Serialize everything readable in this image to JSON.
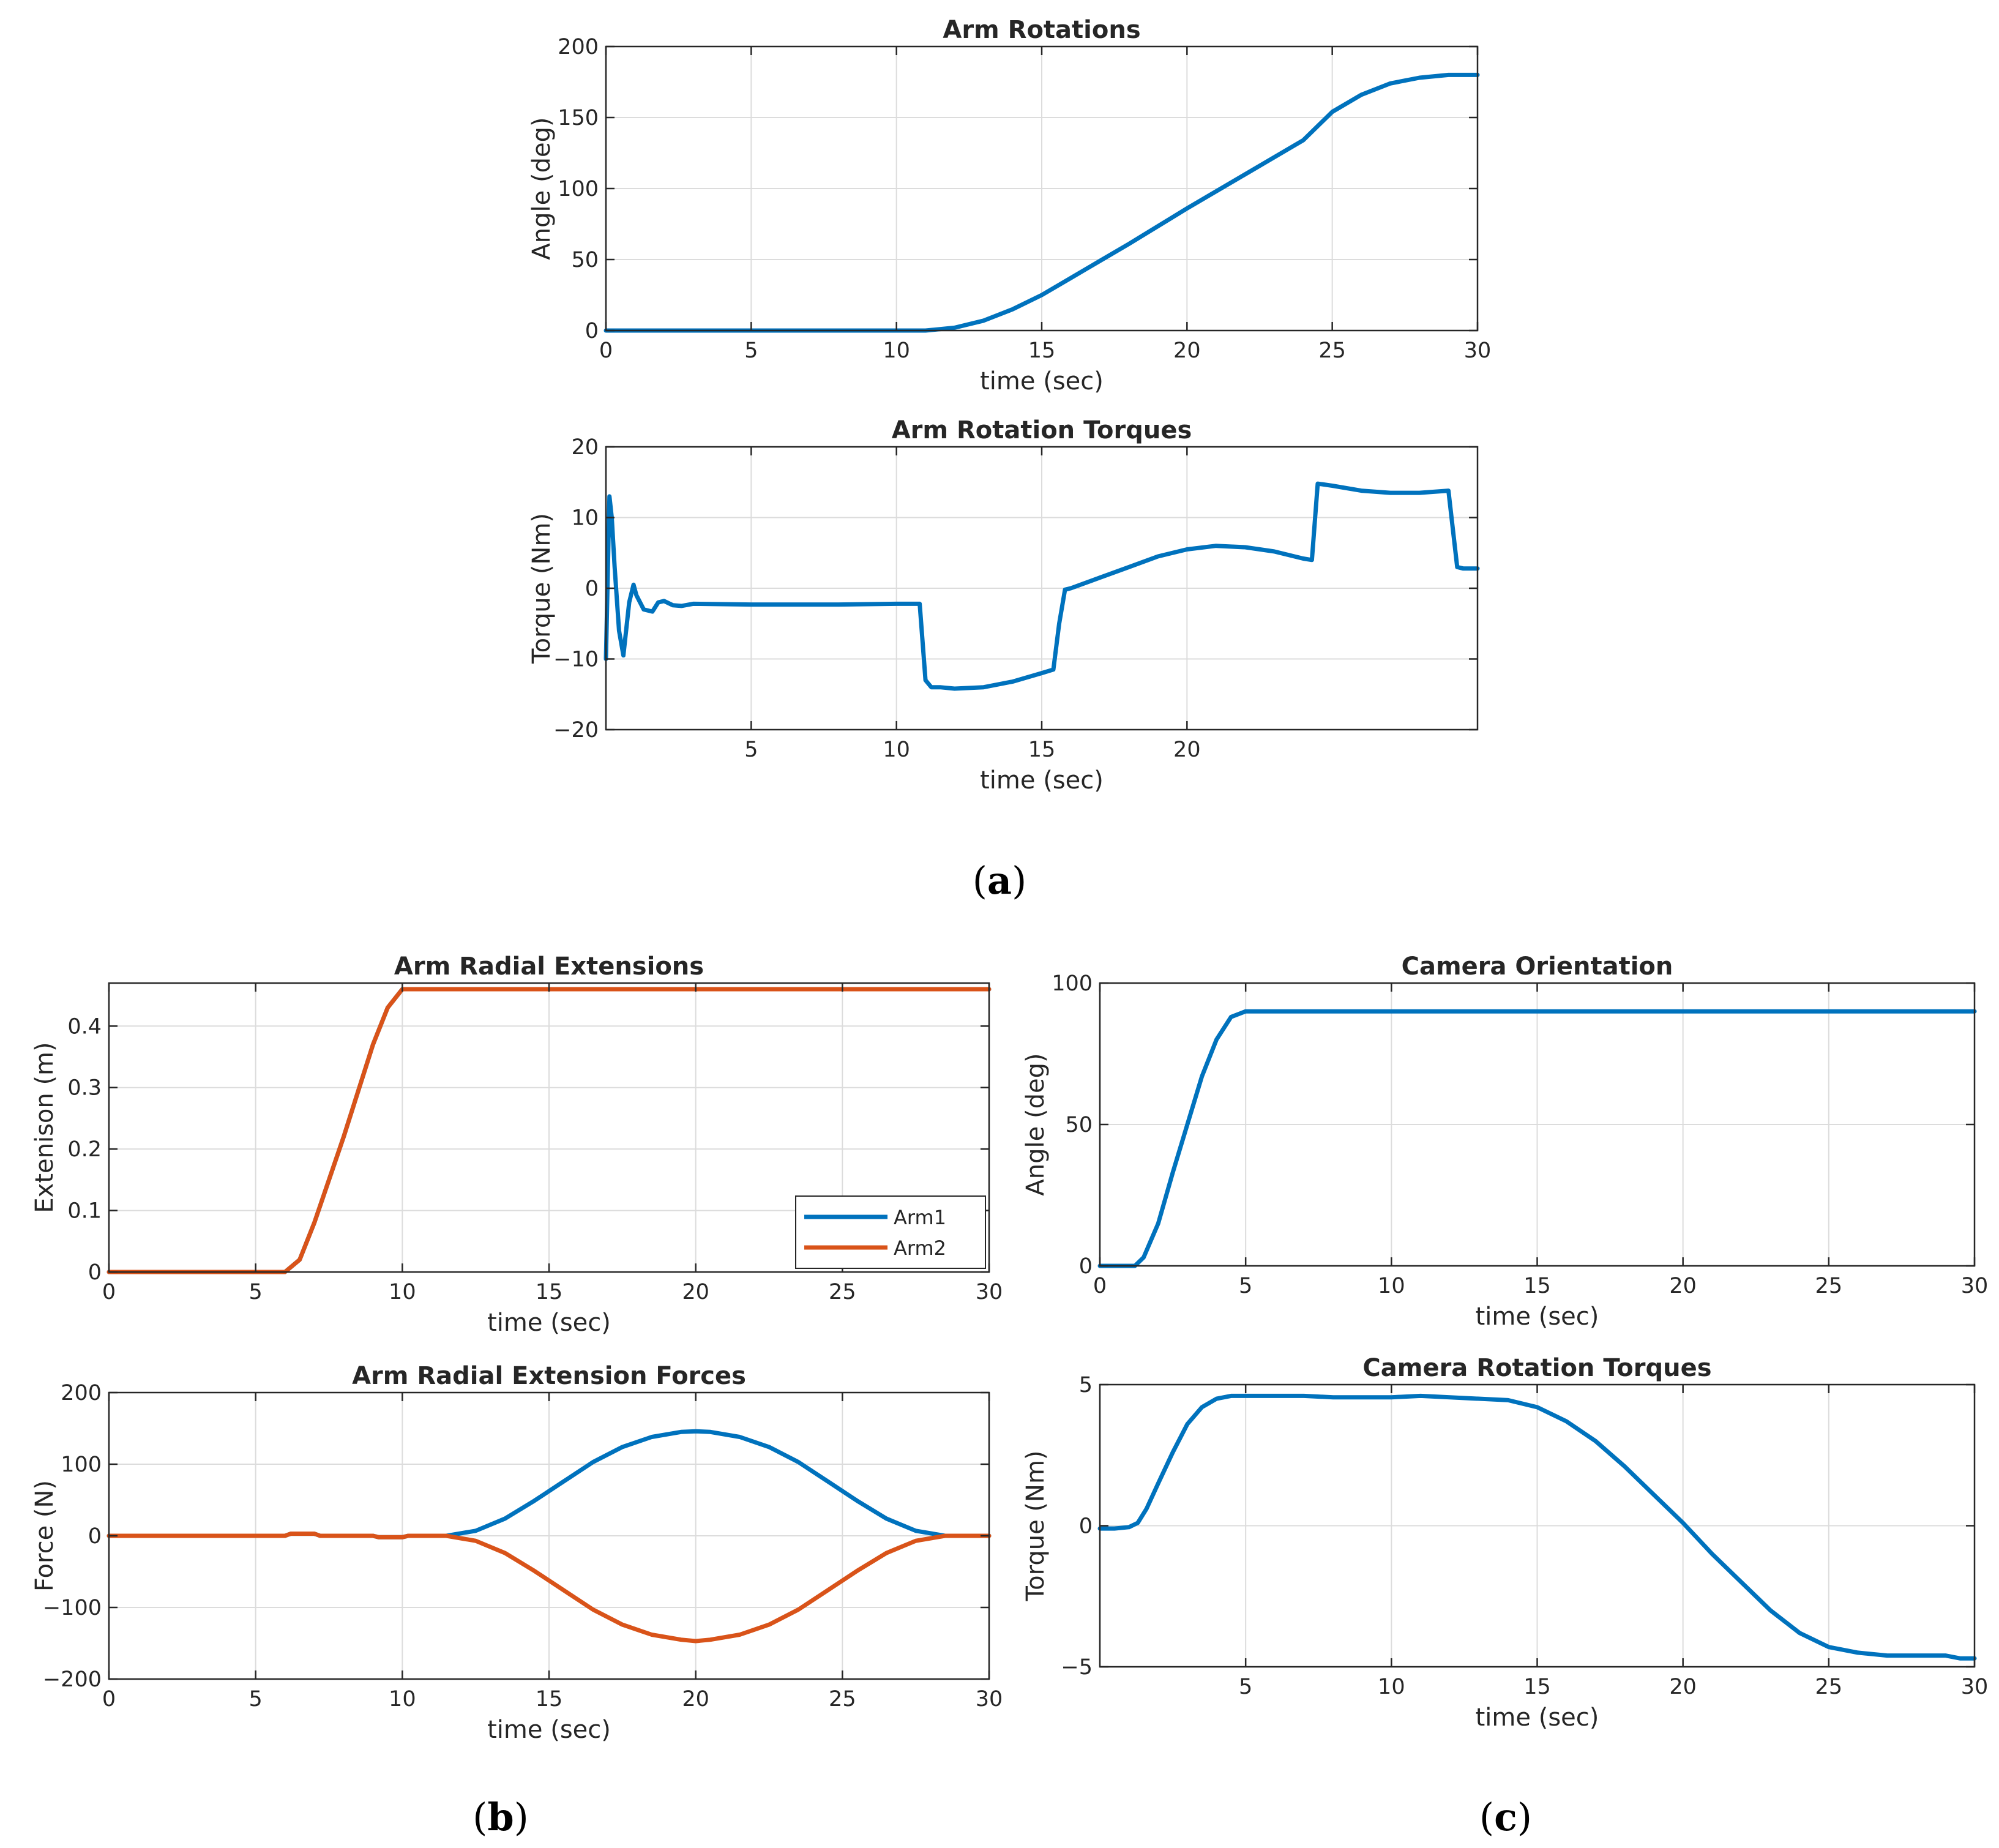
{
  "figure": {
    "panel_labels": [
      "a",
      "b",
      "c"
    ],
    "colors": {
      "arm1": "#0072BD",
      "arm2": "#D95319"
    }
  },
  "chart_data": [
    {
      "id": "arm-rotations",
      "type": "line",
      "title": "Arm Rotations",
      "xlabel": "time (sec)",
      "ylabel": "Angle (deg)",
      "xlim": [
        0,
        30
      ],
      "ylim": [
        0,
        200
      ],
      "xticks": [
        "0",
        "5",
        "10",
        "15",
        "20",
        "25",
        "30"
      ],
      "yticks": [
        "0",
        "50",
        "100",
        "150",
        "200"
      ],
      "grid": true,
      "series": [
        {
          "name": "Arm Rotation",
          "color": "#0072BD",
          "x": [
            0,
            11,
            12,
            13,
            14,
            15,
            16,
            17,
            18,
            20,
            22,
            24,
            25,
            26,
            27,
            28,
            29,
            30
          ],
          "y": [
            0,
            0,
            2,
            7,
            15,
            25,
            37,
            49,
            61,
            86,
            110,
            134,
            154,
            166,
            174,
            178,
            180,
            180
          ]
        }
      ]
    },
    {
      "id": "arm-rotation-torques",
      "type": "line",
      "title": "Arm Rotation Torques",
      "xlabel": "time (sec)",
      "ylabel": "Torque (Nm)",
      "xlim": [
        0,
        30
      ],
      "ylim": [
        -20,
        20
      ],
      "xticks": [
        "5",
        "10",
        "15",
        "20"
      ],
      "yticks": [
        "-20",
        "-10",
        "0",
        "10",
        "20"
      ],
      "grid": true,
      "series": [
        {
          "name": "Arm Rotation Torque",
          "color": "#0072BD",
          "x": [
            0,
            0.12,
            0.2,
            0.3,
            0.45,
            0.6,
            0.8,
            0.95,
            1.05,
            1.3,
            1.6,
            1.8,
            2.0,
            2.3,
            2.6,
            3,
            5,
            8,
            10,
            10.8,
            11.0,
            11.2,
            11.5,
            12,
            13,
            14,
            15,
            15.4,
            15.6,
            15.8,
            16,
            17,
            18,
            19,
            20,
            21,
            22,
            23,
            24.0,
            24.3,
            24.5,
            25,
            26,
            27,
            28,
            29.0,
            29.3,
            29.5,
            30
          ],
          "y": [
            -10,
            13,
            10,
            3,
            -6,
            -9.5,
            -2,
            0.5,
            -1,
            -3,
            -3.3,
            -2,
            -1.8,
            -2.4,
            -2.5,
            -2.2,
            -2.3,
            -2.3,
            -2.2,
            -2.2,
            -13,
            -14,
            -14,
            -14.2,
            -14,
            -13.2,
            -12,
            -11.5,
            -5,
            -0.2,
            0,
            1.5,
            3,
            4.5,
            5.5,
            6,
            5.8,
            5.2,
            4.2,
            4,
            14.8,
            14.5,
            13.8,
            13.5,
            13.5,
            13.8,
            3,
            2.8,
            2.8
          ]
        }
      ]
    },
    {
      "id": "arm-radial-extensions",
      "type": "line",
      "title": "Arm Radial Extensions",
      "xlabel": "time (sec)",
      "ylabel": "Extenison (m)",
      "xlim": [
        0,
        30
      ],
      "ylim": [
        0,
        0.47
      ],
      "xticks": [
        "0",
        "5",
        "10",
        "15",
        "20",
        "25",
        "30"
      ],
      "yticks": [
        "0",
        "0.1",
        "0.2",
        "0.3",
        "0.4"
      ],
      "grid": true,
      "legend": {
        "position": "bottom-right",
        "entries": [
          "Arm1",
          "Arm2"
        ]
      },
      "series": [
        {
          "name": "Arm1",
          "color": "#0072BD",
          "x": [
            0,
            6,
            6.5,
            7,
            8,
            9,
            9.5,
            10,
            30
          ],
          "y": [
            0,
            0,
            0.02,
            0.08,
            0.22,
            0.37,
            0.43,
            0.46,
            0.46
          ]
        },
        {
          "name": "Arm2",
          "color": "#D95319",
          "x": [
            0,
            6,
            6.5,
            7,
            8,
            9,
            9.5,
            10,
            30
          ],
          "y": [
            0,
            0,
            0.02,
            0.08,
            0.22,
            0.37,
            0.43,
            0.46,
            0.46
          ]
        }
      ]
    },
    {
      "id": "arm-radial-extension-forces",
      "type": "line",
      "title": "Arm Radial Extension Forces",
      "xlabel": "time (sec)",
      "ylabel": "Force (N)",
      "xlim": [
        0,
        30
      ],
      "ylim": [
        -200,
        200
      ],
      "xticks": [
        "0",
        "5",
        "10",
        "15",
        "20",
        "25",
        "30"
      ],
      "yticks": [
        "-200",
        "-100",
        "0",
        "100",
        "200"
      ],
      "grid": true,
      "series": [
        {
          "name": "Arm1",
          "color": "#0072BD",
          "x": [
            0,
            6,
            6.2,
            7,
            7.2,
            9,
            9.2,
            10,
            10.2,
            11.5,
            12.5,
            13.5,
            14.5,
            15.5,
            16.5,
            17.5,
            18.5,
            19.5,
            20,
            20.5,
            21.5,
            22.5,
            23.5,
            24.5,
            25.5,
            26.5,
            27.5,
            28.5,
            30
          ],
          "y": [
            0,
            0,
            3,
            3,
            0,
            0,
            -2,
            -2,
            0,
            0,
            7,
            24,
            49,
            76,
            103,
            124,
            138,
            145,
            146,
            145,
            138,
            124,
            103,
            76,
            49,
            24,
            7,
            0,
            0
          ]
        },
        {
          "name": "Arm2",
          "color": "#D95319",
          "x": [
            0,
            6,
            6.2,
            7,
            7.2,
            9,
            9.2,
            10,
            10.2,
            11.5,
            12.5,
            13.5,
            14.5,
            15.5,
            16.5,
            17.5,
            18.5,
            19.5,
            20,
            20.5,
            21.5,
            22.5,
            23.5,
            24.5,
            25.5,
            26.5,
            27.5,
            28.5,
            30
          ],
          "y": [
            0,
            0,
            3,
            3,
            0,
            0,
            -2,
            -2,
            0,
            0,
            -7,
            -24,
            -49,
            -76,
            -103,
            -124,
            -138,
            -145,
            -147,
            -145,
            -138,
            -124,
            -103,
            -76,
            -49,
            -24,
            -7,
            0,
            0
          ]
        }
      ]
    },
    {
      "id": "camera-orientation",
      "type": "line",
      "title": "Camera Orientation",
      "xlabel": "time (sec)",
      "ylabel": "Angle (deg)",
      "xlim": [
        0,
        30
      ],
      "ylim": [
        0,
        100
      ],
      "xticks": [
        "0",
        "5",
        "10",
        "15",
        "20",
        "25",
        "30"
      ],
      "yticks": [
        "0",
        "50",
        "100"
      ],
      "grid": true,
      "series": [
        {
          "name": "Camera Orientation",
          "color": "#0072BD",
          "x": [
            0,
            1.2,
            1.5,
            2,
            2.5,
            3,
            3.5,
            4,
            4.5,
            5,
            30
          ],
          "y": [
            0,
            0,
            3,
            15,
            33,
            50,
            67,
            80,
            88,
            90,
            90
          ]
        }
      ]
    },
    {
      "id": "camera-rotation-torques",
      "type": "line",
      "title": "Camera Rotation Torques",
      "xlabel": "time (sec)",
      "ylabel": "Torque (Nm)",
      "xlim": [
        0,
        30
      ],
      "ylim": [
        -5,
        5
      ],
      "xticks": [
        "5",
        "10",
        "15",
        "20",
        "25",
        "30"
      ],
      "yticks": [
        "-5",
        "0",
        "5"
      ],
      "grid": true,
      "series": [
        {
          "name": "Camera Rotation Torque",
          "color": "#0072BD",
          "x": [
            0,
            0.5,
            1,
            1.3,
            1.6,
            2,
            2.5,
            3,
            3.5,
            4,
            4.5,
            5,
            7,
            8,
            10,
            11,
            14,
            15,
            16,
            17,
            18,
            19,
            20,
            21,
            22,
            23,
            24,
            25,
            26,
            27,
            28,
            29,
            29.5,
            30
          ],
          "y": [
            -0.1,
            -0.1,
            -0.05,
            0.1,
            0.6,
            1.5,
            2.6,
            3.6,
            4.2,
            4.5,
            4.6,
            4.6,
            4.6,
            4.55,
            4.55,
            4.6,
            4.45,
            4.2,
            3.7,
            3.0,
            2.1,
            1.1,
            0.1,
            -1.0,
            -2.0,
            -3.0,
            -3.8,
            -4.3,
            -4.5,
            -4.6,
            -4.6,
            -4.6,
            -4.7,
            -4.7
          ]
        }
      ]
    }
  ]
}
